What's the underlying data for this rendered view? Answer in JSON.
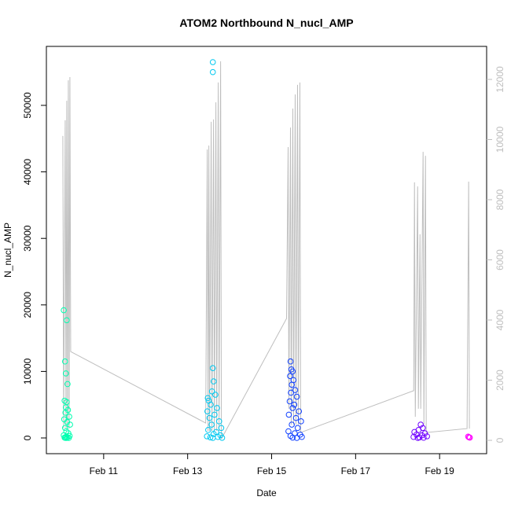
{
  "chart_data": {
    "type": "scatter",
    "title": "ATOM2 Northbound N_nucl_AMP",
    "x_label": "Date",
    "y_label": "N_nucl_AMP",
    "xlim": [
      9.636,
      20.12
    ],
    "xticks": [
      {
        "value": 11,
        "label": "Feb 11"
      },
      {
        "value": 13,
        "label": "Feb 13"
      },
      {
        "value": 15,
        "label": "Feb 15"
      },
      {
        "value": 17,
        "label": "Feb 17"
      },
      {
        "value": 19,
        "label": "Feb 19"
      }
    ],
    "ylim": [
      -2364,
      58865
    ],
    "yticks": [
      0,
      10000,
      20000,
      30000,
      40000,
      50000
    ],
    "y2lim": [
      -444,
      13098
    ],
    "y2ticks": [
      0,
      2000,
      4000,
      6000,
      8000,
      10000,
      12000
    ],
    "y2_color": "#bebebe",
    "series": [
      {
        "color": "#00FFB0",
        "x": [
          10.05,
          10.12,
          10.08,
          10.1,
          10.14,
          10.07,
          10.12,
          10.1,
          10.15,
          10.09,
          10.18,
          10.06,
          10.13,
          10.2,
          10.08,
          10.11,
          10.16,
          10.05,
          10.19,
          10.1,
          10.14,
          10.07,
          10.17,
          10.12,
          10.09
        ],
        "values": [
          19200,
          17700,
          11500,
          9700,
          8100,
          5600,
          5400,
          4600,
          4200,
          3800,
          3200,
          2800,
          2400,
          2000,
          1500,
          1000,
          700,
          400,
          300,
          150,
          100,
          50,
          0,
          0,
          0
        ]
      },
      {
        "color": "#00C8F0",
        "x": [
          13.6,
          13.6,
          13.6,
          13.62,
          13.58,
          13.48,
          13.66,
          13.5,
          13.55,
          13.7,
          13.47,
          13.64,
          13.52,
          13.75,
          13.57,
          13.8,
          13.49,
          13.68,
          13.62,
          13.78,
          13.46,
          13.72,
          13.54,
          13.82,
          13.6
        ],
        "values": [
          56500,
          55000,
          10500,
          8500,
          7000,
          6000,
          6500,
          5600,
          5000,
          4500,
          4000,
          3500,
          3000,
          2500,
          2000,
          1500,
          1200,
          900,
          600,
          400,
          250,
          150,
          80,
          20,
          0
        ]
      },
      {
        "color": "#1040FF",
        "x": [
          15.45,
          15.47,
          15.5,
          15.44,
          15.52,
          15.48,
          15.56,
          15.46,
          15.6,
          15.43,
          15.54,
          15.5,
          15.65,
          15.41,
          15.58,
          15.7,
          15.48,
          15.62,
          15.4,
          15.55,
          15.68,
          15.45,
          15.72,
          15.5,
          15.6
        ],
        "values": [
          11500,
          10300,
          10000,
          9300,
          8700,
          8000,
          7200,
          6800,
          6200,
          5500,
          5000,
          4500,
          4000,
          3500,
          3000,
          2500,
          2000,
          1500,
          1000,
          700,
          500,
          300,
          150,
          50,
          0
        ]
      },
      {
        "color": "#7000FF",
        "x": [
          18.55,
          18.6,
          18.5,
          18.4,
          18.65,
          18.45,
          18.58,
          18.7,
          18.38,
          18.52,
          18.62,
          18.48
        ],
        "values": [
          2000,
          1500,
          1200,
          900,
          700,
          500,
          400,
          250,
          150,
          80,
          30,
          0
        ]
      },
      {
        "color": "#FF00FF",
        "x": [
          19.68,
          19.7,
          19.72
        ],
        "values": [
          200,
          100,
          50
        ]
      },
      {
        "color": "#bebebe",
        "axis": "y2",
        "type": "line",
        "x": [
          10.028,
          10.047,
          10.084,
          10.103,
          10.121,
          10.14,
          10.159,
          10.178,
          10.196,
          10.215,
          13.43,
          13.467,
          13.486,
          13.505,
          13.523,
          13.561,
          13.579,
          13.617,
          13.636,
          13.673,
          13.692,
          13.729,
          13.748,
          13.785,
          13.804,
          15.355,
          15.393,
          15.411,
          15.449,
          15.467,
          15.505,
          15.523,
          15.561,
          15.579,
          15.617,
          15.636,
          15.673,
          15.692,
          18.383,
          18.402,
          18.421,
          18.477,
          18.495,
          18.533,
          18.551,
          18.607,
          18.626,
          18.664,
          18.682,
          19.654,
          19.692,
          19.71
        ],
        "values": [
          10120,
          390,
          10640,
          390,
          11290,
          390,
          11970,
          390,
          12080,
          2950,
          575,
          9670,
          310,
          9800,
          310,
          10590,
          310,
          10670,
          310,
          11240,
          310,
          11900,
          310,
          12600,
          50,
          4050,
          9750,
          1050,
          10400,
          520,
          11030,
          520,
          11500,
          520,
          11820,
          520,
          11900,
          260,
          1650,
          8580,
          780,
          8440,
          1050,
          6850,
          1050,
          9590,
          520,
          9460,
          260,
          390,
          8600,
          390
        ]
      }
    ]
  }
}
